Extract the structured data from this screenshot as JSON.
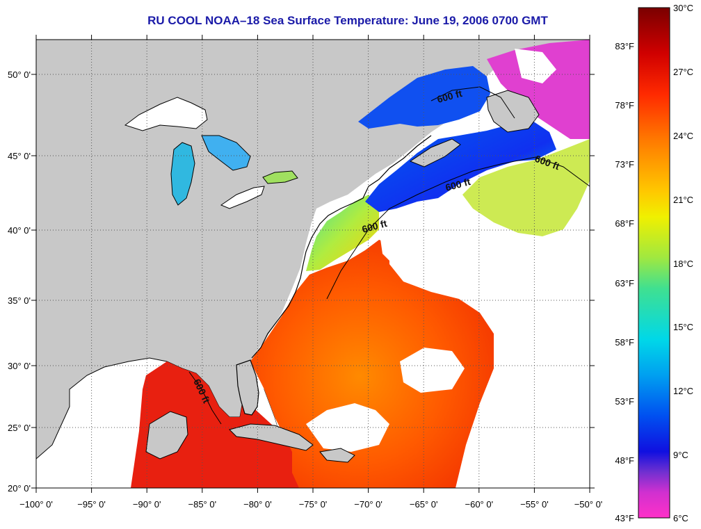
{
  "title": "RU COOL  NOAA–18  Sea Surface Temperature:  June 19, 2006 0700 GMT",
  "lon_ticks": [
    "−100° 0'",
    "−95° 0'",
    "−90° 0'",
    "−85° 0'",
    "−80° 0'",
    "−75° 0'",
    "−70° 0'",
    "−65° 0'",
    "−60° 0'",
    "−55° 0'",
    "−50° 0'"
  ],
  "lat_ticks": [
    "50° 0'",
    "45° 0'",
    "40° 0'",
    "35° 0'",
    "30° 0'",
    "25° 0'",
    "20° 0'"
  ],
  "colorbar": {
    "celsius": [
      "30°C",
      "27°C",
      "24°C",
      "21°C",
      "18°C",
      "15°C",
      "12°C",
      "9°C",
      "6°C"
    ],
    "fahrenheit": [
      "83°F",
      "78°F",
      "73°F",
      "68°F",
      "63°F",
      "58°F",
      "53°F",
      "48°F",
      "43°F"
    ]
  },
  "contour_label": "600 ft",
  "colors": {
    "land": "#c8c8c8",
    "cloud": "#ffffff",
    "title": "#1a1aa8"
  }
}
